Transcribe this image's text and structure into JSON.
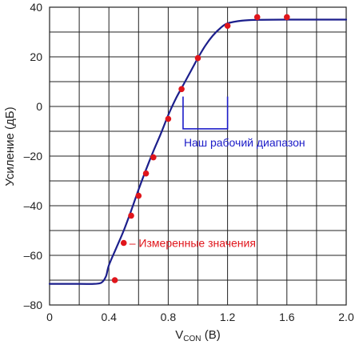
{
  "chart_data": {
    "type": "line",
    "xlabel": {
      "main": "V",
      "sub": "CON",
      "suffix": " (В)"
    },
    "ylabel": "Усиление (дБ)",
    "xlim": [
      0,
      2.0
    ],
    "ylim": [
      -80,
      40
    ],
    "x_ticks": [
      "0",
      "0.4",
      "0.8",
      "1.2",
      "1.6",
      "2.0"
    ],
    "y_ticks": [
      "40",
      "20",
      "0",
      "–20",
      "–40",
      "–60",
      "–80"
    ],
    "x_tick_values": [
      0,
      0.4,
      0.8,
      1.2,
      1.6,
      2.0
    ],
    "y_tick_values": [
      40,
      20,
      0,
      -20,
      -40,
      -60,
      -80
    ],
    "x_grid_step": 0.2,
    "y_grid_step": 10,
    "grid": true,
    "series": [
      {
        "kind": "line",
        "color": "#1c1f8c",
        "points": [
          [
            0.0,
            -71.5
          ],
          [
            0.2,
            -71.5
          ],
          [
            0.3,
            -71.5
          ],
          [
            0.35,
            -71
          ],
          [
            0.38,
            -68.5
          ],
          [
            0.4,
            -64
          ],
          [
            0.45,
            -57
          ],
          [
            0.5,
            -50
          ],
          [
            0.55,
            -42
          ],
          [
            0.6,
            -33.5
          ],
          [
            0.65,
            -25.5
          ],
          [
            0.7,
            -18
          ],
          [
            0.75,
            -11
          ],
          [
            0.8,
            -3.5
          ],
          [
            0.85,
            3
          ],
          [
            0.9,
            8.5
          ],
          [
            0.95,
            14
          ],
          [
            1.0,
            19.5
          ],
          [
            1.05,
            24.5
          ],
          [
            1.1,
            28.5
          ],
          [
            1.15,
            31.5
          ],
          [
            1.2,
            33.5
          ],
          [
            1.3,
            34.6
          ],
          [
            1.4,
            34.9
          ],
          [
            1.6,
            35.0
          ],
          [
            2.0,
            35.0
          ]
        ]
      },
      {
        "name": "Измеренные значения",
        "kind": "scatter",
        "color": "#e0151b",
        "points": [
          [
            0.44,
            -70
          ],
          [
            0.5,
            -55
          ],
          [
            0.55,
            -44
          ],
          [
            0.6,
            -36
          ],
          [
            0.65,
            -27
          ],
          [
            0.7,
            -20.5
          ],
          [
            0.8,
            -5
          ],
          [
            0.89,
            7
          ],
          [
            1.0,
            19.5
          ],
          [
            1.2,
            32.5
          ],
          [
            1.4,
            36
          ],
          [
            1.6,
            36
          ]
        ]
      }
    ],
    "annotations": {
      "range_label": "Наш рабочий диапазон",
      "range_color": "#1c1cc8",
      "range_x": [
        0.9,
        1.2
      ],
      "range_y": [
        4,
        -9
      ],
      "measured_label": "– Измеренные значения",
      "measured_x": 0.5,
      "measured_y": -55
    }
  }
}
